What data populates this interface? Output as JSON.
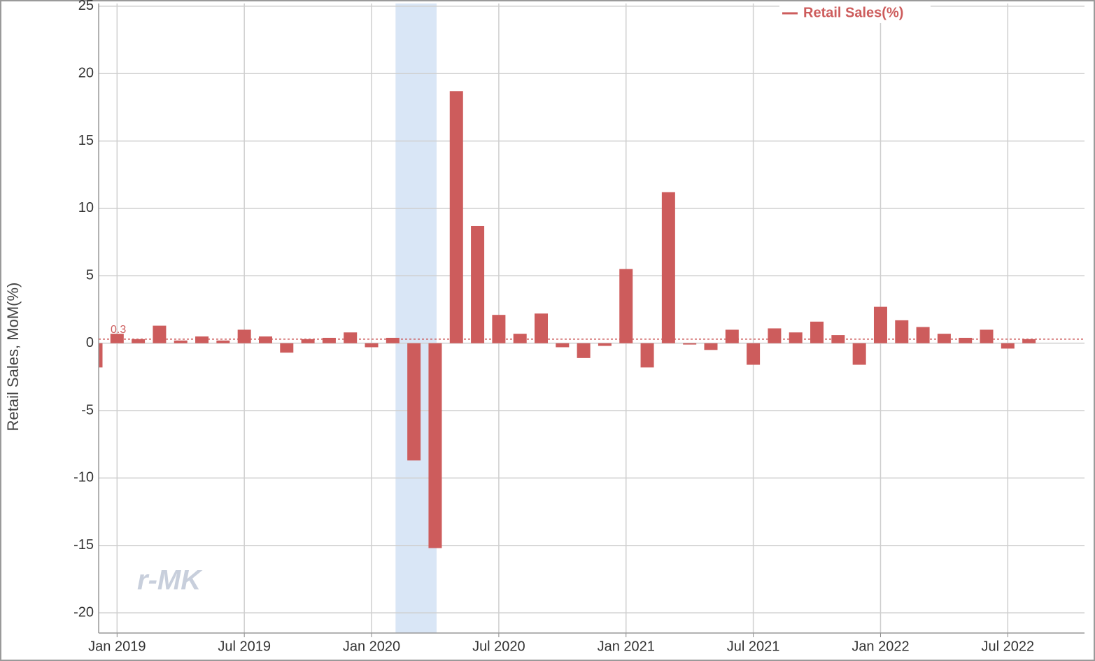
{
  "chart_data": {
    "type": "bar",
    "y_label": "Retail Sales, MoM(%)",
    "watermark": "r-MK",
    "categories": [
      null,
      "Jan 2019",
      null,
      null,
      null,
      null,
      null,
      "Jul 2019",
      null,
      null,
      null,
      null,
      null,
      "Jan 2020",
      null,
      null,
      null,
      null,
      null,
      "Jul 2020",
      null,
      null,
      null,
      null,
      null,
      "Jan 2021",
      null,
      null,
      null,
      null,
      null,
      "Jul 2021",
      null,
      null,
      null,
      null,
      null,
      "Jan 2022",
      null,
      null,
      null,
      null,
      null,
      "Jul 2022",
      null
    ],
    "series": [
      {
        "name": "Retail Sales(%)",
        "color": "#cd5c5c",
        "values": [
          -1.8,
          0.7,
          0.3,
          1.3,
          0.2,
          0.5,
          0.2,
          1.0,
          0.5,
          -0.7,
          0.3,
          0.4,
          0.8,
          -0.3,
          0.4,
          -8.7,
          -15.2,
          18.7,
          8.7,
          2.1,
          0.7,
          2.2,
          -0.3,
          -1.1,
          -0.2,
          5.5,
          -1.8,
          11.2,
          -0.1,
          -0.5,
          1.0,
          -1.6,
          1.1,
          0.8,
          1.6,
          0.6,
          -1.6,
          2.7,
          1.7,
          1.2,
          0.7,
          0.4,
          1.0,
          -0.4,
          0.3
        ]
      }
    ],
    "reference_line": 0.3,
    "highlight": {
      "start": 14,
      "end": 16,
      "color": "#d9e6f6"
    },
    "ylim": [
      -21.5,
      25.2
    ],
    "yticks": [
      -20,
      -15,
      -10,
      -5,
      0,
      5,
      10,
      15,
      20,
      25
    ],
    "grid": true,
    "legend": "top-right"
  }
}
